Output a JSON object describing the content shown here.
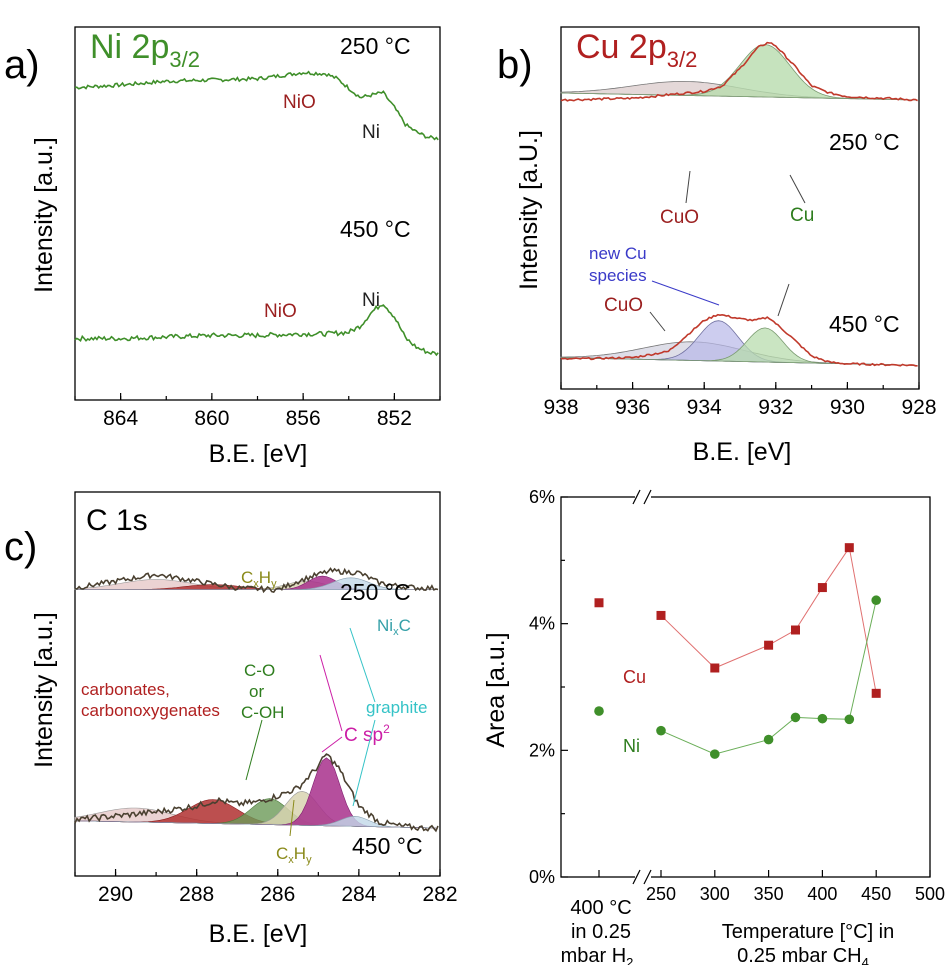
{
  "colors": {
    "ni_green": "#3f8f2a",
    "cu_red": "#b02020",
    "cu_spec_red": "#c0392b",
    "blue": "#3a3ac8",
    "magenta": "#cc1ea6",
    "cyan": "#35c3c7",
    "olive": "#8a8a1a",
    "green_label": "#2e7d1e",
    "darkred_label": "#a52a2a",
    "nio_label": "#9b2020"
  },
  "panels": {
    "a": {
      "letter": "a)",
      "title_main": "Ni 2p",
      "title_sub": "3/2",
      "ylabel": "Intensity [a.u.]",
      "xlabel": "B.E. [eV]",
      "temp_top": "250 °C",
      "temp_bottom": "450 °C",
      "label_nio": "NiO",
      "label_ni": "Ni"
    },
    "b": {
      "letter": "b)",
      "title_main": "Cu 2p",
      "title_sub": "3/2",
      "ylabel": "Intensity [a.U.]",
      "xlabel": "B.E. [eV]",
      "temp_top": "250 °C",
      "temp_bottom": "450 °C",
      "label_cuo": "CuO",
      "label_cu": "Cu",
      "label_new1": "new Cu",
      "label_new2": "species"
    },
    "c": {
      "letter": "c)",
      "title": "C 1s",
      "ylabel": "Intensity [a.u.]",
      "xlabel": "B.E. [eV]",
      "temp_top": "250 °C",
      "temp_bottom": "450 °C",
      "label_cxhy_c": "C",
      "label_cxhy_x": "x",
      "label_cxhy_h": "H",
      "label_cxhy_y": "y",
      "label_nixc_ni": "Ni",
      "label_nixc_x": "x",
      "label_nixc_c": "C",
      "label_co": "C-O",
      "label_or": "or",
      "label_coh": "C-OH",
      "label_carb1": "carbonates,",
      "label_carb2": "carbonoxygenates",
      "label_graphite": "graphite",
      "label_csp": "C sp",
      "label_csp_sup": "2"
    },
    "d": {
      "ylabel": "Area [a.u.]",
      "series_cu": "Cu",
      "series_ni": "Ni",
      "xlab1_line1": "400 °C",
      "xlab1_line2": "in 0.25",
      "xlab1_line3": "mbar H",
      "xlab1_sub": "2",
      "xlab2_line1": "Temperature [°C] in",
      "xlab2_line2": "0.25 mbar CH",
      "xlab2_sub": "4"
    }
  },
  "chart_data": [
    {
      "type": "line",
      "panel": "a",
      "title": "Ni 2p3/2",
      "xlabel": "B.E. [eV]",
      "ylabel": "Intensity [a.u.]",
      "xlim": [
        866,
        850
      ],
      "x_reversed": true,
      "xticks": [
        864,
        860,
        856,
        852
      ],
      "series": [
        {
          "name": "250 °C",
          "x": [
            866,
            864,
            862,
            860,
            858,
            856,
            855,
            854.5,
            853.5,
            853,
            852.5,
            852,
            851.5,
            851,
            850.5,
            850
          ],
          "y": [
            0.78,
            0.8,
            0.83,
            0.84,
            0.85,
            0.9,
            0.89,
            0.85,
            0.7,
            0.72,
            0.74,
            0.62,
            0.48,
            0.42,
            0.38,
            0.37
          ]
        },
        {
          "name": "450 °C",
          "x": [
            866,
            864,
            862,
            860,
            858,
            856,
            855,
            854,
            853.5,
            853,
            852.5,
            852,
            851.5,
            851,
            850.5,
            850
          ],
          "y": [
            0.3,
            0.3,
            0.31,
            0.32,
            0.32,
            0.33,
            0.33,
            0.34,
            0.38,
            0.47,
            0.53,
            0.44,
            0.3,
            0.24,
            0.21,
            0.2
          ]
        }
      ]
    },
    {
      "type": "area",
      "panel": "b",
      "title": "Cu 2p3/2",
      "xlabel": "B.E. [eV]",
      "ylabel": "Intensity [a.U.]",
      "xlim": [
        938,
        928
      ],
      "x_reversed": true,
      "xticks": [
        938,
        936,
        934,
        932,
        930,
        928
      ],
      "series": [
        {
          "name": "250 °C",
          "x": [
            938,
            936,
            935,
            934,
            933.5,
            933,
            932.5,
            932.2,
            932,
            931.5,
            931,
            930.5,
            930,
            929,
            928
          ],
          "y": [
            0.6,
            0.61,
            0.63,
            0.65,
            0.68,
            0.78,
            0.9,
            0.93,
            0.91,
            0.8,
            0.68,
            0.64,
            0.62,
            0.61,
            0.6
          ]
        },
        {
          "name": "450 °C",
          "x": [
            938,
            936,
            935,
            934.5,
            934,
            933.6,
            933,
            932.6,
            932.2,
            932,
            931.6,
            931,
            930.5,
            930,
            929,
            928
          ],
          "y": [
            0.07,
            0.08,
            0.12,
            0.22,
            0.32,
            0.36,
            0.33,
            0.32,
            0.34,
            0.3,
            0.22,
            0.09,
            0.05,
            0.04,
            0.035,
            0.03
          ]
        }
      ]
    },
    {
      "type": "area",
      "panel": "c",
      "title": "C 1s",
      "xlabel": "B.E. [eV]",
      "ylabel": "Intensity [a.u.]",
      "xlim": [
        291,
        282
      ],
      "x_reversed": true,
      "xticks": [
        290,
        288,
        286,
        284,
        282
      ],
      "series": [
        {
          "name": "250 °C",
          "x": [
            291,
            290,
            289,
            288,
            287,
            286,
            285.5,
            285,
            284.7,
            284,
            283.5,
            283,
            282.5
          ],
          "y": [
            0.6,
            0.64,
            0.68,
            0.64,
            0.6,
            0.59,
            0.64,
            0.68,
            0.7,
            0.69,
            0.63,
            0.61,
            0.6
          ]
        },
        {
          "name": "450 °C",
          "x": [
            291,
            290,
            289,
            288,
            287.5,
            287,
            286.5,
            286,
            285.5,
            285,
            284.8,
            284.5,
            284,
            283.5,
            283,
            282.5
          ],
          "y": [
            0.1,
            0.12,
            0.14,
            0.17,
            0.2,
            0.18,
            0.19,
            0.22,
            0.26,
            0.37,
            0.43,
            0.36,
            0.17,
            0.09,
            0.07,
            0.06
          ]
        }
      ]
    },
    {
      "type": "scatter",
      "panel": "d",
      "ylabel": "Area [a.u.]",
      "xlabel": "Temperature [°C] in 0.25 mbar CH4",
      "ylim": [
        0,
        6
      ],
      "yticks": [
        "0%",
        "2%",
        "4%",
        "6%"
      ],
      "xticks": [
        250,
        300,
        350,
        400,
        450,
        500
      ],
      "series": [
        {
          "name": "Cu",
          "reference_400C_H2": 4.33,
          "x": [
            250,
            300,
            350,
            375,
            400,
            425,
            450
          ],
          "y": [
            4.13,
            3.3,
            3.66,
            3.9,
            4.57,
            5.2,
            2.9
          ]
        },
        {
          "name": "Ni",
          "reference_400C_H2": 2.62,
          "x": [
            250,
            300,
            350,
            375,
            400,
            425,
            450
          ],
          "y": [
            2.31,
            1.94,
            2.17,
            2.52,
            2.5,
            2.49,
            4.37
          ]
        }
      ]
    }
  ]
}
